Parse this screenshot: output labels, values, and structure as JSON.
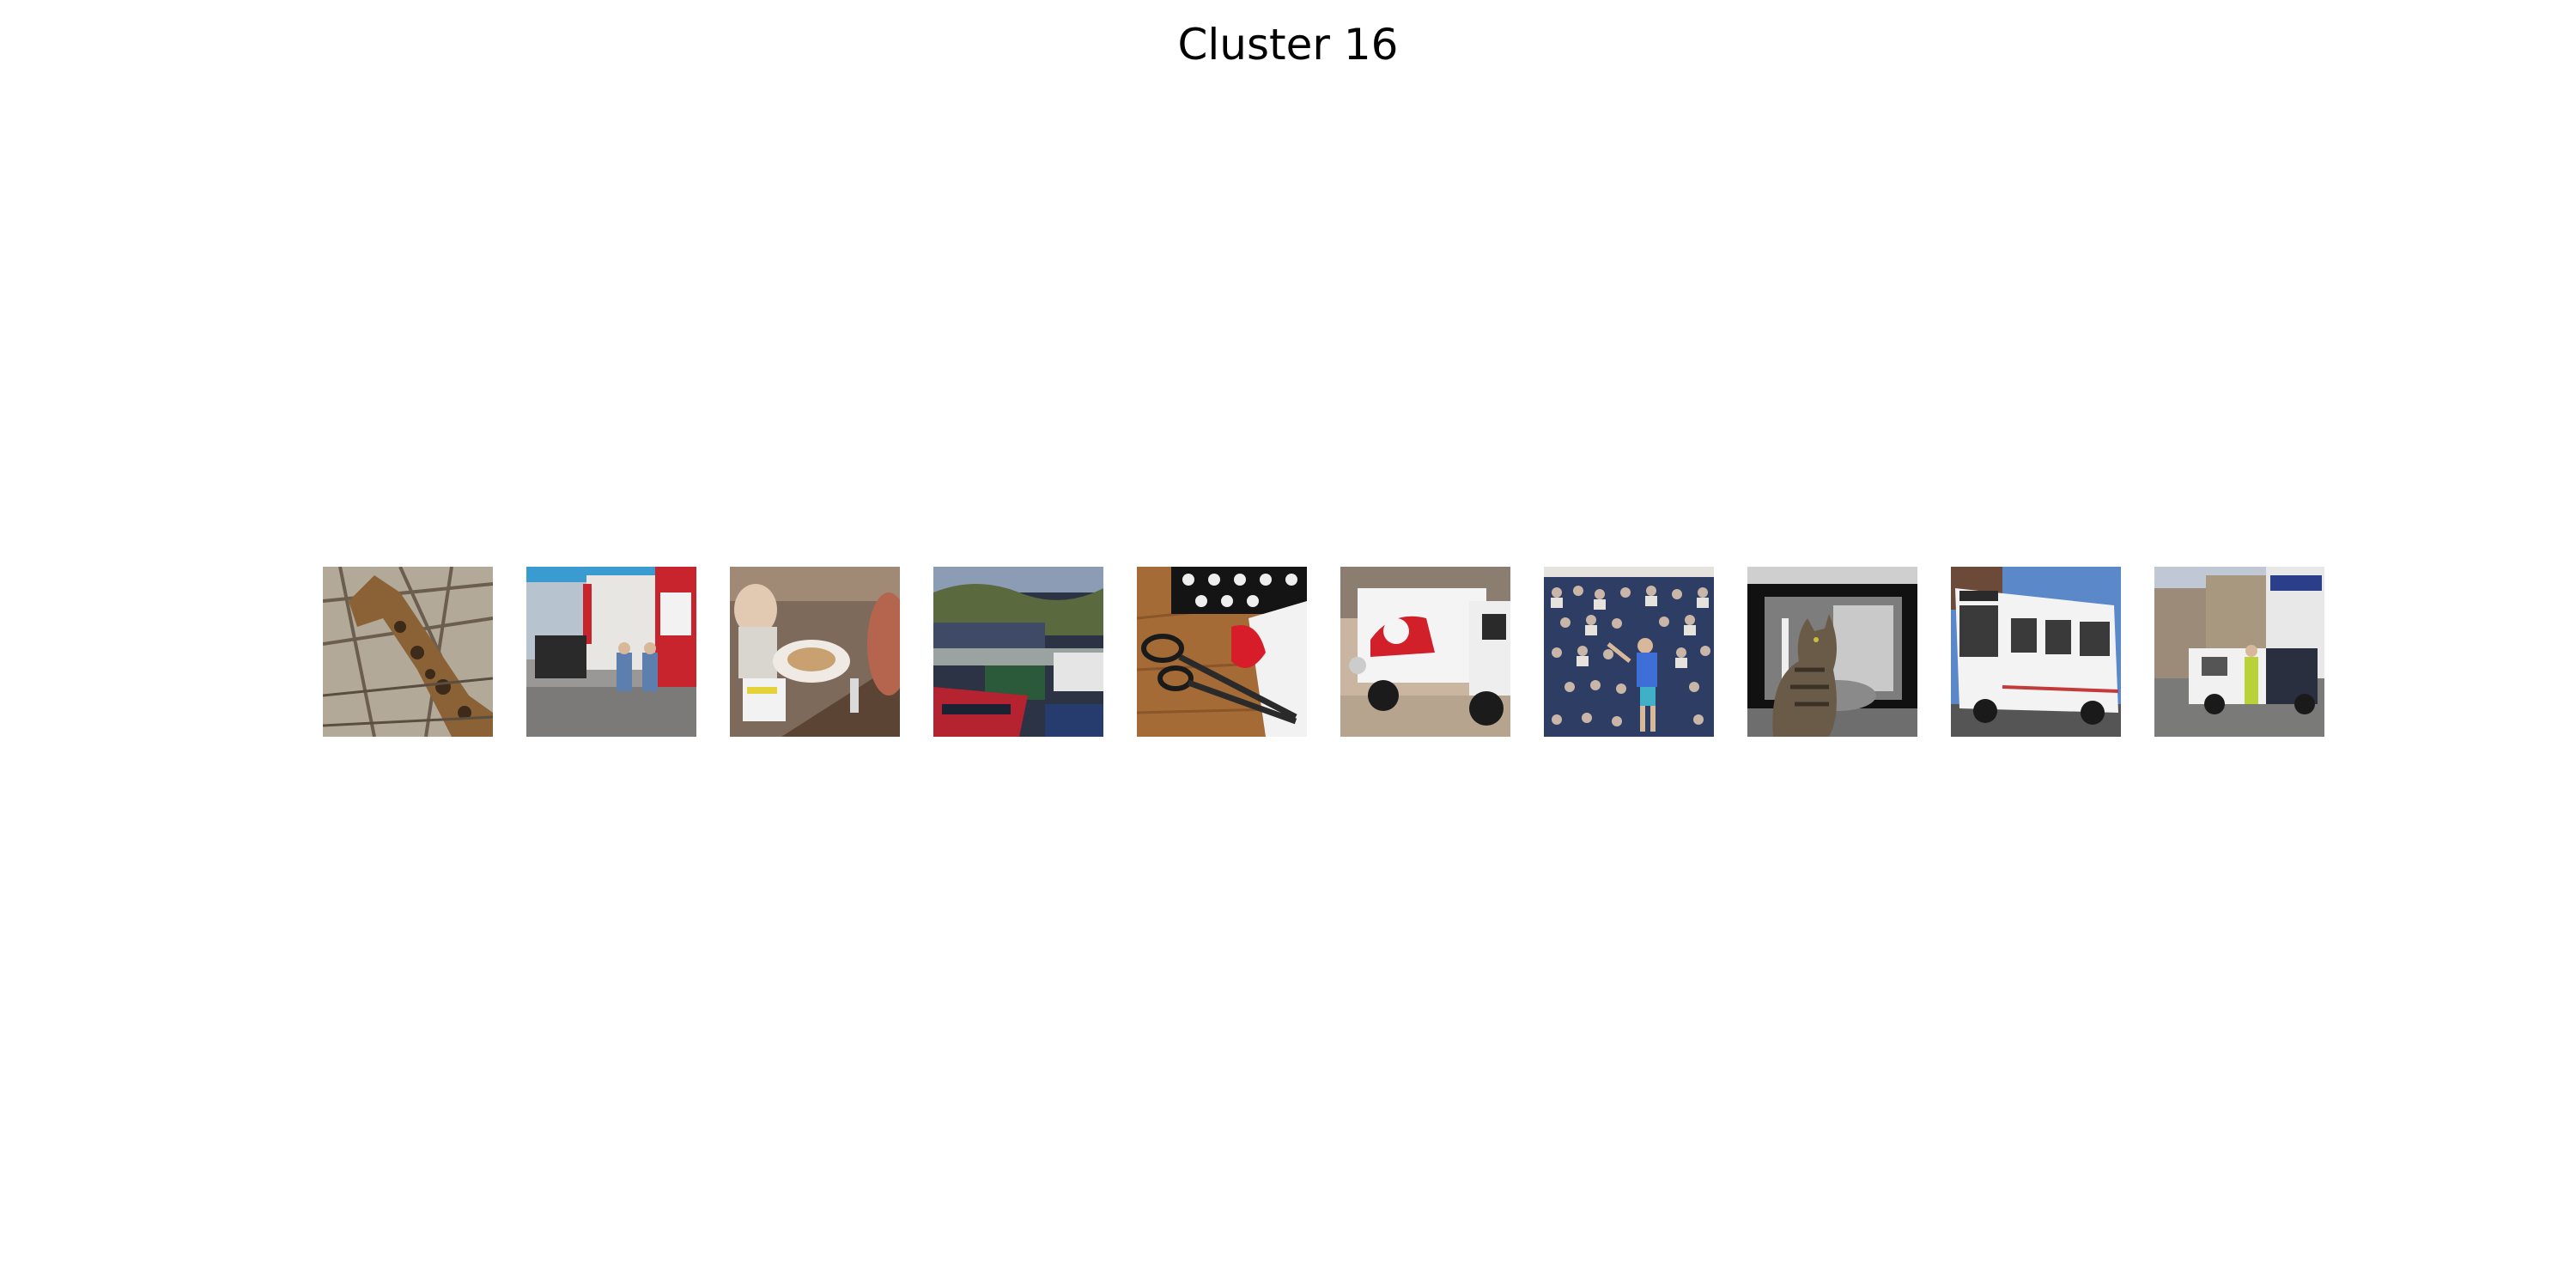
{
  "figure": {
    "title": "Cluster 16"
  },
  "thumbnails": [
    {
      "subject": "giraffe-among-branches",
      "palette": {
        "bg": "#a59a8c",
        "a": "#7a5a34",
        "b": "#3e2a18",
        "c": "#c9c0b2"
      }
    },
    {
      "subject": "street-corner-with-two-people",
      "palette": {
        "bg": "#8e8c8a",
        "a": "#6a6866",
        "b": "#c8242e",
        "c": "#5c7fb0"
      }
    },
    {
      "subject": "restaurant-table-with-plate",
      "palette": {
        "bg": "#8a7464",
        "a": "#d9cfc4",
        "b": "#5b4433",
        "c": "#b5654e"
      }
    },
    {
      "subject": "canal-boats",
      "palette": {
        "bg": "#7f8fa8",
        "a": "#5a6a3e",
        "b": "#b52230",
        "c": "#222a3a"
      }
    },
    {
      "subject": "scissors-on-wooden-table",
      "palette": {
        "bg": "#a46b36",
        "a": "#1a1a1a",
        "b": "#d81d2a",
        "c": "#f2f2f2"
      }
    },
    {
      "subject": "tow-truck-carrying-red-car",
      "palette": {
        "bg": "#bca58e",
        "a": "#f4f4f4",
        "b": "#d2202a",
        "c": "#1b1b1b"
      }
    },
    {
      "subject": "tennis-player-and-crowd",
      "palette": {
        "bg": "#2e3d63",
        "a": "#c9b6a8",
        "b": "#3d6fd6",
        "c": "#e6e3de"
      }
    },
    {
      "subject": "cat-in-front-of-screen",
      "palette": {
        "bg": "#9c9c9c",
        "a": "#1a1a1a",
        "b": "#6a5a48",
        "c": "#dcdcdc"
      }
    },
    {
      "subject": "white-city-bus",
      "palette": {
        "bg": "#5b88c8",
        "a": "#f3f3f3",
        "b": "#3a3a3a",
        "c": "#c23a3a"
      }
    },
    {
      "subject": "street-with-van-and-worker",
      "palette": {
        "bg": "#8a8580",
        "a": "#9c8b78",
        "b": "#e8e8e8",
        "c": "#b9d23a"
      }
    }
  ]
}
